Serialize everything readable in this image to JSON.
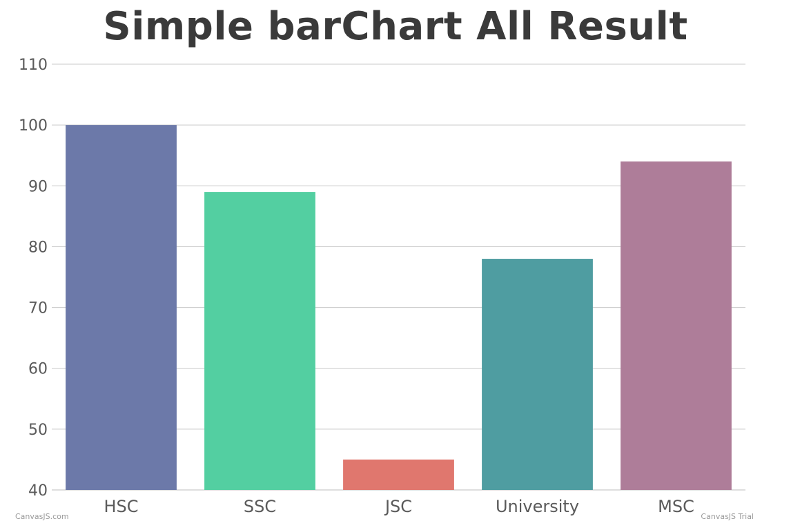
{
  "chart_data": {
    "type": "bar",
    "title": "Simple barChart All Result",
    "categories": [
      "HSC",
      "SSC",
      "JSC",
      "University",
      "MSC"
    ],
    "values": [
      100,
      89,
      45,
      78,
      94
    ],
    "colors": [
      "#6c79a9",
      "#53cfa1",
      "#e0776e",
      "#4f9da1",
      "#ae7d99"
    ],
    "ylim": [
      40,
      110
    ],
    "yticks": [
      40,
      50,
      60,
      70,
      80,
      90,
      100,
      110
    ],
    "grid": true,
    "legend": "none",
    "xlabel": "",
    "ylabel": ""
  },
  "watermark": {
    "left": "CanvasJS.com",
    "right": "CanvasJS Trial"
  }
}
